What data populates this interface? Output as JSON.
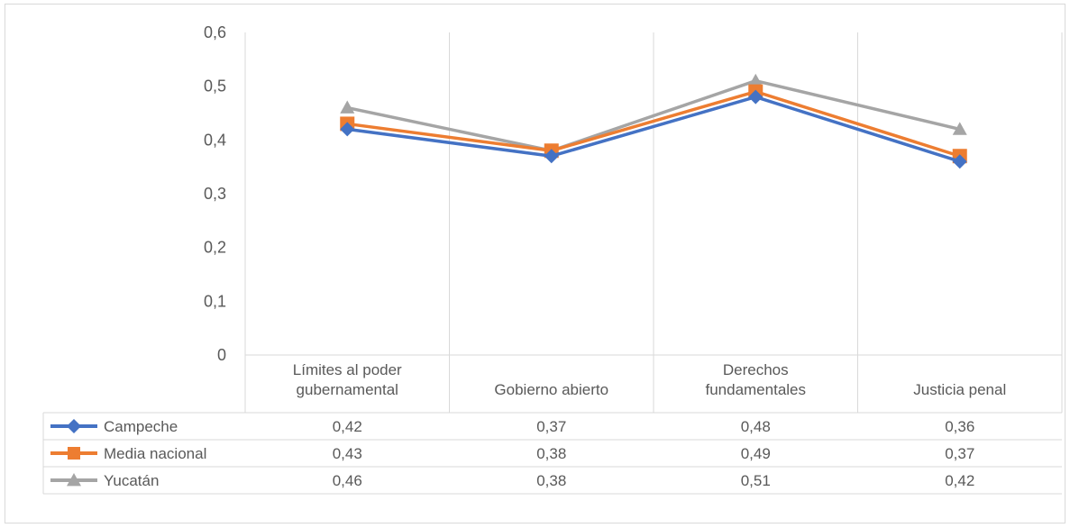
{
  "chart_data": {
    "type": "line",
    "title": "",
    "xlabel": "",
    "ylabel": "",
    "ylim": [
      0,
      0.6
    ],
    "y_ticks": [
      {
        "value": 0,
        "label": "0"
      },
      {
        "value": 0.1,
        "label": "0,1"
      },
      {
        "value": 0.2,
        "label": "0,2"
      },
      {
        "value": 0.3,
        "label": "0,3"
      },
      {
        "value": 0.4,
        "label": "0,4"
      },
      {
        "value": 0.5,
        "label": "0,5"
      },
      {
        "value": 0.6,
        "label": "0,6"
      }
    ],
    "categories": [
      [
        "Límites al poder",
        "gubernamental"
      ],
      [
        "Gobierno abierto"
      ],
      [
        "Derechos",
        "fundamentales"
      ],
      [
        "Justicia penal"
      ]
    ],
    "grid": true,
    "legend": "data-table",
    "series": [
      {
        "name": "Campeche",
        "color": "#4472C4",
        "marker": "diamond",
        "values": [
          0.42,
          0.37,
          0.48,
          0.36
        ],
        "labels": [
          "0,42",
          "0,37",
          "0,48",
          "0,36"
        ]
      },
      {
        "name": "Media nacional",
        "color": "#ED7D31",
        "marker": "square",
        "values": [
          0.43,
          0.38,
          0.49,
          0.37
        ],
        "labels": [
          "0,43",
          "0,38",
          "0,49",
          "0,37"
        ]
      },
      {
        "name": "Yucatán",
        "color": "#A5A5A5",
        "marker": "triangle",
        "values": [
          0.46,
          0.38,
          0.51,
          0.42
        ],
        "labels": [
          "0,46",
          "0,38",
          "0,51",
          "0,42"
        ]
      }
    ]
  }
}
